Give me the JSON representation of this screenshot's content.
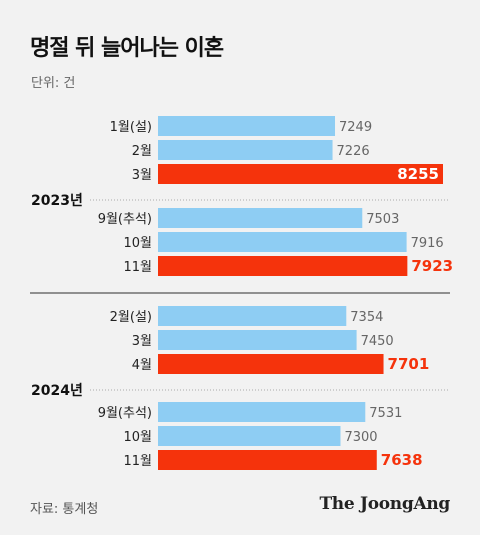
{
  "title": "명절 뒤 늘어나는 이혼",
  "unit": "단위: 건",
  "source": "자료: 통계청",
  "brand": "The JoongAng",
  "colors": {
    "normal": "#8ecdf3",
    "highlight": "#f5330c",
    "value_normal": "#666666",
    "value_highlight_outside": "#f5330c",
    "value_highlight_inside": "#ffffff"
  },
  "chart_data": {
    "type": "bar",
    "orientation": "horizontal",
    "xlim": [
      0,
      8255
    ],
    "groups": [
      {
        "year": "2023년",
        "rows": [
          {
            "label": "1월(설)",
            "value": 7249,
            "highlight": false
          },
          {
            "label": "2월",
            "value": 7226,
            "highlight": false
          },
          {
            "label": "3월",
            "value": 8255,
            "highlight": true
          },
          {
            "label": "9월(추석)",
            "value": 7503,
            "highlight": false
          },
          {
            "label": "10월",
            "value": 7916,
            "highlight": false
          },
          {
            "label": "11월",
            "value": 7923,
            "highlight": true
          }
        ]
      },
      {
        "year": "2024년",
        "rows": [
          {
            "label": "2월(설)",
            "value": 7354,
            "highlight": false
          },
          {
            "label": "3월",
            "value": 7450,
            "highlight": false
          },
          {
            "label": "4월",
            "value": 7701,
            "highlight": true
          },
          {
            "label": "9월(추석)",
            "value": 7531,
            "highlight": false
          },
          {
            "label": "10월",
            "value": 7300,
            "highlight": false
          },
          {
            "label": "11월",
            "value": 7638,
            "highlight": true
          }
        ]
      }
    ]
  }
}
